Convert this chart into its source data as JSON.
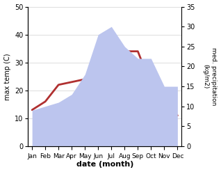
{
  "months": [
    "Jan",
    "Feb",
    "Mar",
    "Apr",
    "May",
    "Jun",
    "Jul",
    "Aug",
    "Sep",
    "Oct",
    "Nov",
    "Dec"
  ],
  "max_temp": [
    13,
    16,
    22,
    23,
    24,
    31,
    32,
    34,
    34,
    22,
    16,
    11
  ],
  "precipitation": [
    9,
    10,
    11,
    13,
    18,
    28,
    30,
    25,
    22,
    22,
    15,
    15
  ],
  "temp_color": "#b03030",
  "precip_fill_color": "#bcc5ee",
  "xlabel": "date (month)",
  "ylabel_left": "max temp (C)",
  "ylabel_right": "med. precipitation\n(kg/m2)",
  "ylim_left": [
    0,
    50
  ],
  "ylim_right": [
    0,
    35
  ],
  "yticks_left": [
    0,
    10,
    20,
    30,
    40,
    50
  ],
  "yticks_right": [
    0,
    5,
    10,
    15,
    20,
    25,
    30,
    35
  ],
  "bg_color": "#ffffff",
  "line_width": 2.0
}
